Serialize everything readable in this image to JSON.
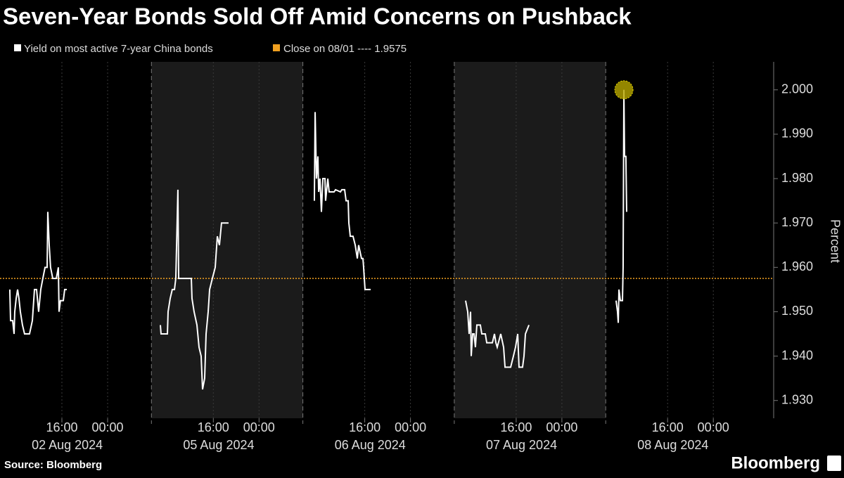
{
  "chart_data": {
    "type": "line",
    "title": "Seven-Year Bonds Sold Off Amid Concerns on Pushback",
    "source": "Source: Bloomberg",
    "brand": "Bloomberg",
    "y_label": "Percent",
    "panels": [
      "02 Aug 2024",
      "05 Aug 2024",
      "06 Aug 2024",
      "07 Aug 2024",
      "08 Aug 2024"
    ],
    "xtick_times": [
      "16:00",
      "00:00"
    ],
    "ylim": [
      1.926,
      2.0063
    ],
    "yticks": [
      {
        "value": 1.93,
        "label": "1.930"
      },
      {
        "value": 1.94,
        "label": "1.940"
      },
      {
        "value": 1.95,
        "label": "1.950"
      },
      {
        "value": 1.96,
        "label": "1.960"
      },
      {
        "value": 1.97,
        "label": "1.970"
      },
      {
        "value": 1.98,
        "label": "1.980"
      },
      {
        "value": 1.99,
        "label": "1.990"
      },
      {
        "value": 2.0,
        "label": "2.000"
      }
    ],
    "reference": {
      "name": "Close on 08/01 ---- 1.9575",
      "value": 1.9575,
      "color": "#f0a020"
    },
    "x": [
      "02 Aug 2024 06:53",
      "02 Aug 2024 07:01",
      "02 Aug 2024 07:23",
      "02 Aug 2024 07:38",
      "02 Aug 2024 07:45",
      "02 Aug 2024 08:00",
      "02 Aug 2024 08:15",
      "02 Aug 2024 08:29",
      "02 Aug 2024 08:44",
      "02 Aug 2024 09:06",
      "02 Aug 2024 09:28",
      "02 Aug 2024 10:20",
      "02 Aug 2024 10:50",
      "02 Aug 2024 11:12",
      "02 Aug 2024 11:34",
      "02 Aug 2024 11:56",
      "02 Aug 2024 12:18",
      "02 Aug 2024 12:40",
      "02 Aug 2024 13:03",
      "02 Aug 2024 13:25",
      "02 Aug 2024 13:32",
      "02 Aug 2024 13:47",
      "02 Aug 2024 14:01",
      "02 Aug 2024 14:24",
      "02 Aug 2024 15:01",
      "02 Aug 2024 15:23",
      "02 Aug 2024 15:30",
      "02 Aug 2024 15:45",
      "02 Aug 2024 16:15",
      "02 Aug 2024 16:29",
      "02 Aug 2024 16:52",
      null,
      "05 Aug 2024 06:44",
      "05 Aug 2024 06:51",
      "05 Aug 2024 07:58",
      "05 Aug 2024 08:05",
      "05 Aug 2024 08:27",
      "05 Aug 2024 08:49",
      "05 Aug 2024 09:12",
      "05 Aug 2024 09:26",
      "05 Aug 2024 09:48",
      "05 Aug 2024 09:56",
      "05 Aug 2024 11:17",
      "05 Aug 2024 12:09",
      "05 Aug 2024 12:16",
      "05 Aug 2024 12:38",
      "05 Aug 2024 13:08",
      "05 Aug 2024 13:30",
      "05 Aug 2024 13:52",
      "05 Aug 2024 14:07",
      "05 Aug 2024 14:29",
      "05 Aug 2024 14:44",
      "05 Aug 2024 15:06",
      "05 Aug 2024 15:21",
      "05 Aug 2024 15:50",
      "05 Aug 2024 16:20",
      "05 Aug 2024 16:42",
      "05 Aug 2024 17:04",
      "05 Aug 2024 17:26",
      "05 Aug 2024 18:40",
      null,
      "06 Aug 2024 07:11",
      "06 Aug 2024 07:19",
      "06 Aug 2024 07:33",
      "06 Aug 2024 07:48",
      "06 Aug 2024 07:56",
      "06 Aug 2024 08:10",
      "06 Aug 2024 08:25",
      "06 Aug 2024 08:40",
      "06 Aug 2024 09:02",
      "06 Aug 2024 09:09",
      "06 Aug 2024 09:32",
      "06 Aug 2024 09:46",
      "06 Aug 2024 10:38",
      "06 Aug 2024 10:53",
      "06 Aug 2024 11:45",
      "06 Aug 2024 11:59",
      "06 Aug 2024 12:29",
      "06 Aug 2024 12:44",
      "06 Aug 2024 13:06",
      "06 Aug 2024 13:13",
      "06 Aug 2024 13:28",
      "06 Aug 2024 13:57",
      "06 Aug 2024 14:20",
      "06 Aug 2024 14:42",
      "06 Aug 2024 14:56",
      "06 Aug 2024 15:26",
      "06 Aug 2024 15:41",
      "06 Aug 2024 15:48",
      "06 Aug 2024 16:03",
      "06 Aug 2024 17:02",
      null,
      "07 Aug 2024 07:09",
      "07 Aug 2024 07:31",
      "07 Aug 2024 07:46",
      "07 Aug 2024 08:01",
      "07 Aug 2024 08:08",
      "07 Aug 2024 08:23",
      "07 Aug 2024 08:38",
      "07 Aug 2024 08:52",
      "07 Aug 2024 09:07",
      "07 Aug 2024 09:44",
      "07 Aug 2024 09:59",
      "07 Aug 2024 10:36",
      "07 Aug 2024 10:51",
      "07 Aug 2024 11:50",
      "07 Aug 2024 12:12",
      "07 Aug 2024 12:27",
      "07 Aug 2024 12:41",
      "07 Aug 2024 13:18",
      "07 Aug 2024 13:48",
      "07 Aug 2024 14:03",
      "07 Aug 2024 15:02",
      "07 Aug 2024 15:31",
      "07 Aug 2024 15:53",
      "07 Aug 2024 16:16",
      "07 Aug 2024 16:30",
      "07 Aug 2024 17:07",
      "07 Aug 2024 17:22",
      "07 Aug 2024 17:37",
      "07 Aug 2024 18:14",
      null,
      "08 Aug 2024 06:59",
      "08 Aug 2024 07:14",
      "08 Aug 2024 07:22",
      "08 Aug 2024 07:29",
      "08 Aug 2024 07:44",
      "08 Aug 2024 08:06",
      "08 Aug 2024 08:13",
      "08 Aug 2024 08:21",
      "08 Aug 2024 08:28",
      "08 Aug 2024 08:42",
      "08 Aug 2024 08:50"
    ],
    "series": [
      {
        "name": "Yield on most active 7-year China bonds",
        "color": "#ffffff",
        "values": [
          1.955,
          1.948,
          1.948,
          1.945,
          1.95,
          1.953,
          1.955,
          1.953,
          1.95,
          1.947,
          1.945,
          1.945,
          1.948,
          1.955,
          1.955,
          1.95,
          1.955,
          1.9575,
          1.96,
          1.96,
          1.9725,
          1.965,
          1.96,
          1.9575,
          1.9575,
          1.96,
          1.95,
          1.9525,
          1.9525,
          1.955,
          1.955,
          null,
          1.947,
          1.945,
          1.945,
          1.95,
          1.953,
          1.955,
          1.955,
          1.9575,
          1.9775,
          1.9575,
          1.9575,
          1.9575,
          1.953,
          1.95,
          1.947,
          1.942,
          1.94,
          1.9325,
          1.935,
          1.945,
          1.95,
          1.955,
          1.9575,
          1.96,
          1.967,
          1.965,
          1.97,
          1.97,
          null,
          1.975,
          1.995,
          1.98,
          1.985,
          1.977,
          1.98,
          1.9725,
          1.98,
          1.98,
          1.975,
          1.98,
          1.977,
          1.977,
          1.9775,
          1.977,
          1.9775,
          1.9775,
          1.975,
          1.975,
          1.97,
          1.967,
          1.967,
          1.965,
          1.962,
          1.965,
          1.962,
          1.962,
          1.96,
          1.955,
          1.955,
          null,
          1.9525,
          1.95,
          1.945,
          1.95,
          1.94,
          1.945,
          1.945,
          1.942,
          1.947,
          1.947,
          1.945,
          1.945,
          1.943,
          1.943,
          1.945,
          1.943,
          1.942,
          1.945,
          1.942,
          1.9375,
          1.9375,
          1.94,
          1.942,
          1.945,
          1.9375,
          1.9375,
          1.94,
          1.945,
          1.947,
          null,
          1.9525,
          1.95,
          1.9475,
          1.955,
          1.9525,
          1.9525,
          1.96,
          2.0,
          1.985,
          1.985,
          1.9725
        ]
      }
    ]
  }
}
